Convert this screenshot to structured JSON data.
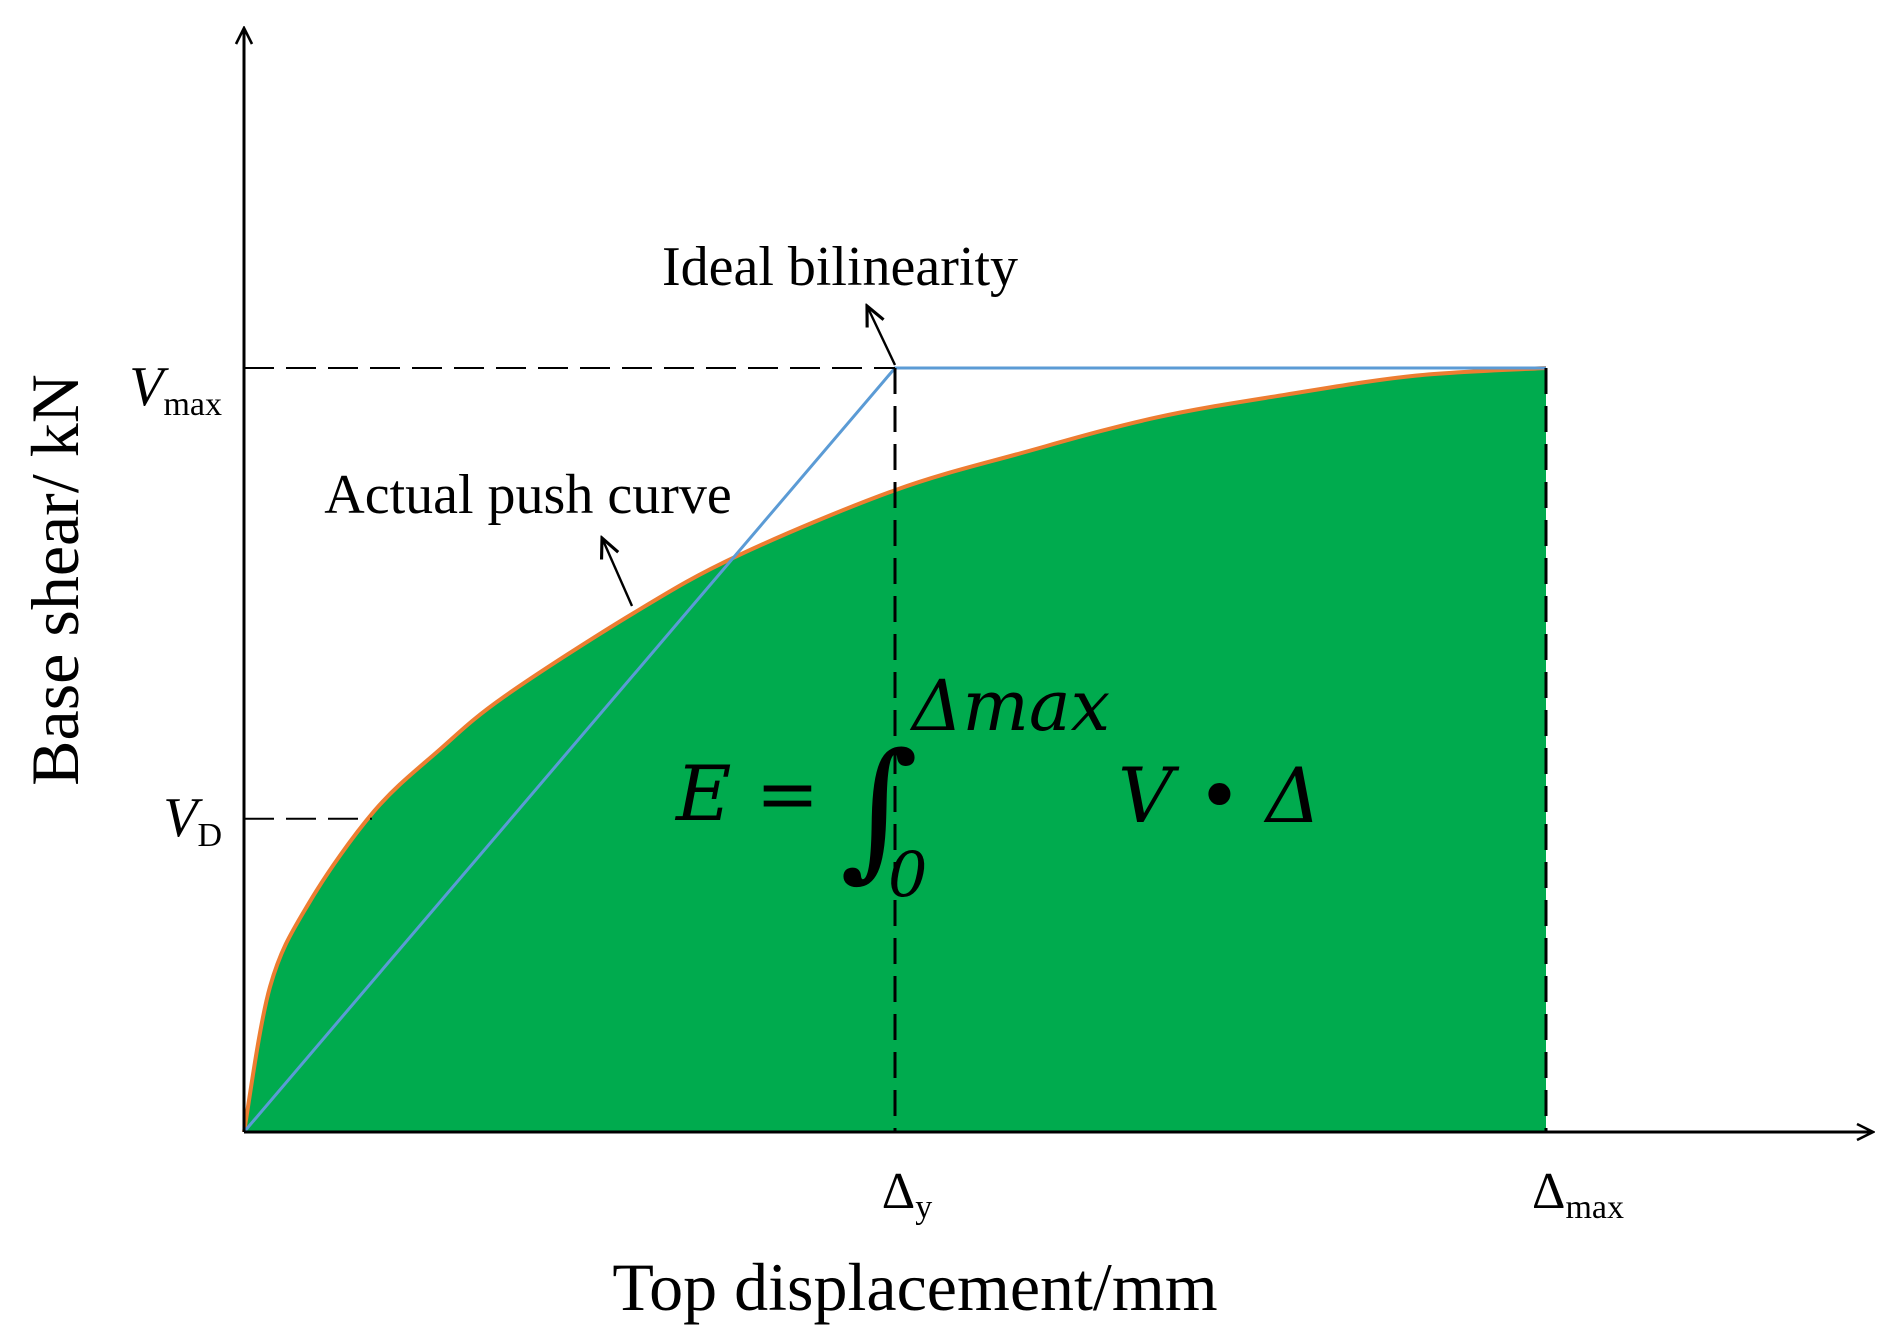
{
  "chart_data": {
    "type": "area",
    "xlabel": "Top displacement/mm",
    "ylabel": "Base shear/ kN",
    "x_ticks": [
      {
        "main": "Δ",
        "sub": "y"
      },
      {
        "main": "Δ",
        "sub": "max"
      }
    ],
    "y_ticks": [
      {
        "main": "V",
        "sub": "max"
      },
      {
        "main": "V",
        "sub": "D"
      }
    ],
    "normalized": {
      "delta_y": 0.5,
      "delta_max": 1.0,
      "v_max": 1.0,
      "v_d": 0.41
    },
    "series": [
      {
        "name": "Actual push curve",
        "color": "#ed7d31",
        "fill": "#00ab4e",
        "x": [
          0,
          0.02,
          0.05,
          0.1,
          0.15,
          0.2,
          0.3,
          0.38,
          0.5,
          0.6,
          0.7,
          0.8,
          0.9,
          1.0
        ],
        "y": [
          0,
          0.19,
          0.3,
          0.42,
          0.5,
          0.57,
          0.68,
          0.755,
          0.84,
          0.89,
          0.935,
          0.965,
          0.99,
          1.0
        ]
      },
      {
        "name": "Ideal bilinearity",
        "color": "#5b9bd5",
        "x": [
          0,
          0.5,
          1.0
        ],
        "y": [
          0,
          1.0,
          1.0
        ]
      }
    ],
    "annotations": {
      "actual_curve_label": "Actual push curve",
      "ideal_label": "Ideal bilinearity",
      "formula": {
        "lhs": "E =",
        "integral": "∫",
        "upper": "Δmax",
        "lower": "0",
        "integrand": "V • Δ"
      }
    },
    "colors": {
      "area_fill": "#00ab4e",
      "actual_curve": "#ed7d31",
      "ideal_curve": "#5b9bd5",
      "axes": "#000000"
    }
  }
}
